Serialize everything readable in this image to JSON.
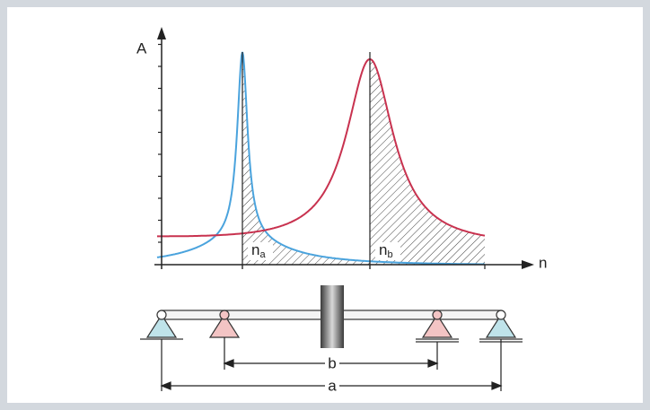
{
  "diagram": {
    "axes": {
      "y_label": "A",
      "x_label": "n"
    },
    "markers": [
      {
        "symbol": "n",
        "subscript": "a"
      },
      {
        "symbol": "n",
        "subscript": "b"
      }
    ],
    "dimensions": [
      {
        "label": "b"
      },
      {
        "label": "a"
      }
    ]
  }
}
